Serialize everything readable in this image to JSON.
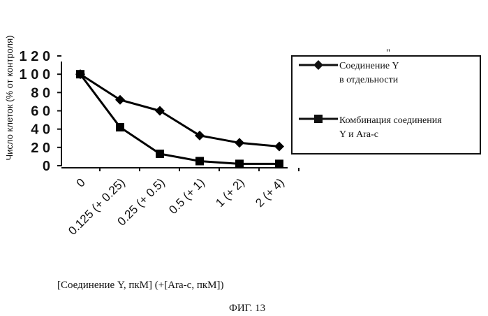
{
  "chart_data": {
    "type": "line",
    "ylabel": "Число клеток (% от контроля)",
    "xlabel": "[Соединение Y, пкМ] (+[Ara-c, пкМ])",
    "figure_label": "ФИГ. 13",
    "stray_mark": "\"",
    "y_tick_labels": [
      "0",
      "2 0",
      "4 0",
      "6 0",
      "8 0",
      "1 0 0",
      "1 2 0"
    ],
    "y_tick_values": [
      0,
      20,
      40,
      60,
      80,
      100,
      120
    ],
    "ylim": [
      0,
      120
    ],
    "x_tick_labels": [
      "0",
      "0.125 (+ 0.25)",
      "0.25 (+ 0.5)",
      "0.5 (+ 1)",
      "1 (+ 2)",
      "2 (+ 4)"
    ],
    "categories": [
      "0",
      "0.125",
      "0.25",
      "0.5",
      "1",
      "2"
    ],
    "grid": false,
    "legend_position": "right",
    "series": [
      {
        "name": "Соединение Y в отдельности",
        "marker": "diamond",
        "color": "#000000",
        "values": [
          100,
          72,
          60,
          33,
          25,
          21
        ]
      },
      {
        "name": "Комбинация соединения Y и Ara-c",
        "marker": "square",
        "color": "#000000",
        "values": [
          100,
          42,
          13,
          5,
          2,
          2
        ]
      }
    ]
  }
}
